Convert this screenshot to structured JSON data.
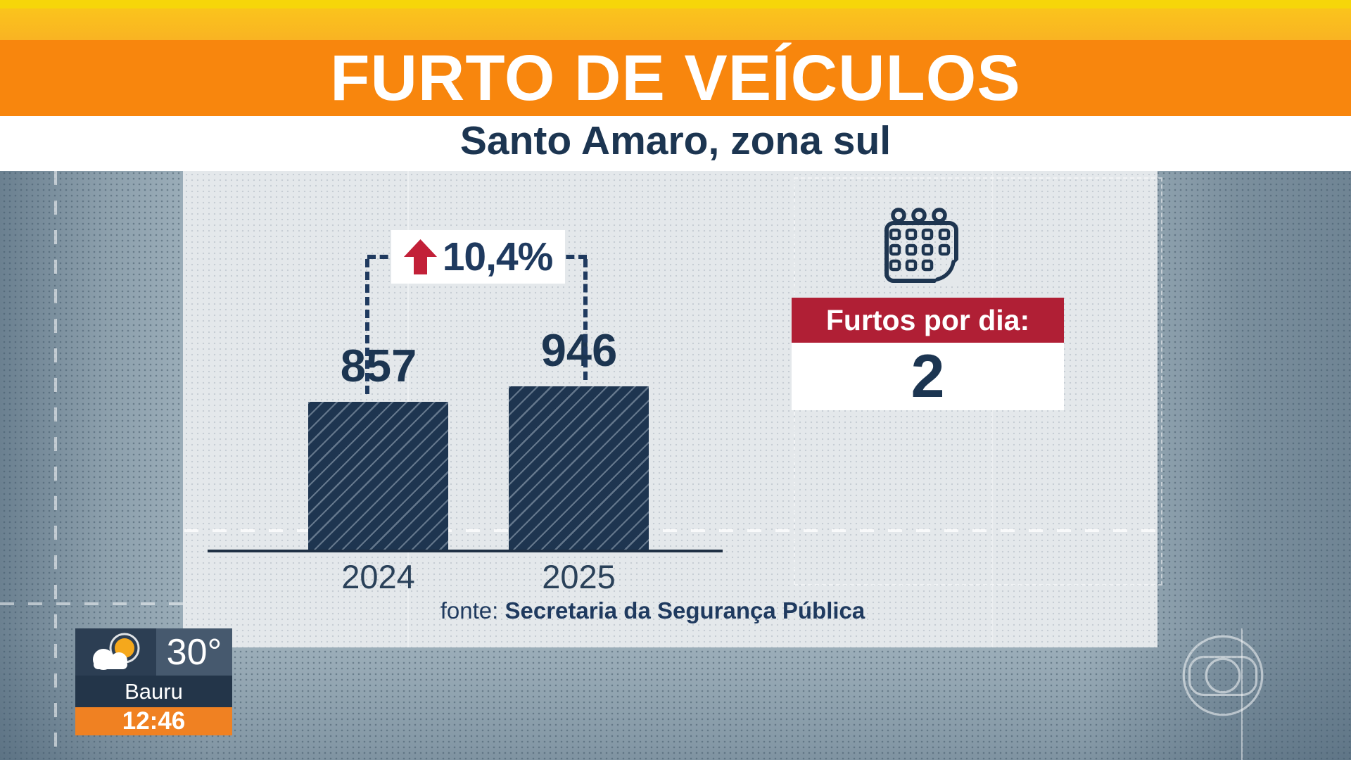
{
  "header": {
    "title": "FURTO DE VEÍCULOS",
    "subtitle": "Santo Amaro, zona sul",
    "colors": {
      "strip": "#F6D60A",
      "amber": "#F9B91F",
      "orange": "#F8860D"
    }
  },
  "chart_data": {
    "type": "bar",
    "title": "FURTO DE VEÍCULOS",
    "subtitle": "Santo Amaro, zona sul",
    "categories": [
      "2024",
      "2025"
    ],
    "values": [
      857,
      946
    ],
    "ylim": [
      0,
      946
    ],
    "grid": false,
    "legend": false,
    "bar_color": "#1E3550",
    "bar_pattern": "diagonal-hatch",
    "annotation": {
      "change_label": "10,4%",
      "direction": "up",
      "arrow_icon": "arrow-up-icon",
      "arrow_color": "#C22038"
    },
    "source": {
      "prefix": "fonte:",
      "name": "Secretaria da Segurança Pública"
    }
  },
  "stat_panel": {
    "icon": "calendar-icon",
    "label": "Furtos por dia:",
    "value": "2",
    "label_bg": "#B01F35",
    "value_color": "#1C3551"
  },
  "weather_widget": {
    "icon": "cloud-sun-icon",
    "temperature": "30°",
    "city": "Bauru",
    "time": "12:46",
    "time_bg": "#F08122"
  },
  "watermark": "globo-logo",
  "palette": {
    "navy": "#1C3551",
    "panel_bg": "#E4E8EB",
    "outer_bg": "#9FB1BC"
  }
}
